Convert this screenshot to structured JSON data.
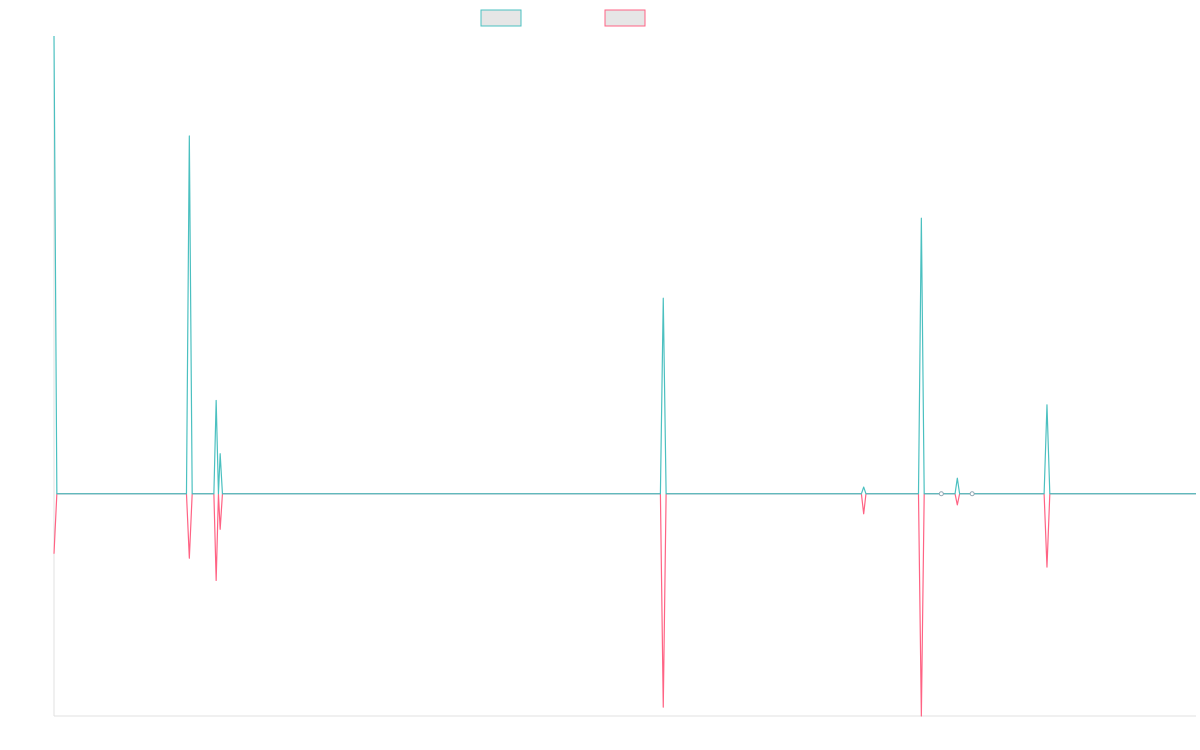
{
  "chart_data": {
    "type": "line",
    "title": "",
    "xlabel": "",
    "ylabel": "",
    "grid": false,
    "legend": "top-center",
    "x_range": [
      0,
      100
    ],
    "y_range": [
      -100,
      206
    ],
    "series": [
      {
        "name": "",
        "color": "#4bc0c0",
        "fill": "#e6e6e6",
        "points": [
          [
            0,
            206
          ],
          [
            0.25,
            0
          ],
          [
            11.6,
            0
          ],
          [
            11.85,
            161
          ],
          [
            12.1,
            0
          ],
          [
            14.0,
            0
          ],
          [
            14.2,
            42
          ],
          [
            14.4,
            0
          ],
          [
            14.55,
            18
          ],
          [
            14.75,
            0
          ],
          [
            53.1,
            0
          ],
          [
            53.35,
            88
          ],
          [
            53.6,
            0
          ],
          [
            70.7,
            0
          ],
          [
            70.9,
            3
          ],
          [
            71.1,
            0
          ],
          [
            75.7,
            0
          ],
          [
            75.95,
            124
          ],
          [
            76.2,
            0
          ],
          [
            77.7,
            0
          ],
          [
            78.9,
            0
          ],
          [
            79.1,
            7
          ],
          [
            79.3,
            0
          ],
          [
            80.4,
            0
          ],
          [
            86.7,
            0
          ],
          [
            86.95,
            40
          ],
          [
            87.2,
            0
          ],
          [
            100,
            0
          ]
        ]
      },
      {
        "name": "",
        "color": "#ff6384",
        "fill": "#e6e6e6",
        "points": [
          [
            0,
            -27
          ],
          [
            0.25,
            0
          ],
          [
            11.6,
            0
          ],
          [
            11.85,
            -29
          ],
          [
            12.1,
            0
          ],
          [
            14.0,
            0
          ],
          [
            14.2,
            -39
          ],
          [
            14.4,
            0
          ],
          [
            14.55,
            -16
          ],
          [
            14.75,
            0
          ],
          [
            53.1,
            0
          ],
          [
            53.35,
            -96
          ],
          [
            53.6,
            0
          ],
          [
            70.7,
            0
          ],
          [
            70.9,
            -9
          ],
          [
            71.1,
            0
          ],
          [
            75.7,
            0
          ],
          [
            75.95,
            -100
          ],
          [
            76.2,
            0
          ],
          [
            77.7,
            0
          ],
          [
            78.9,
            0
          ],
          [
            79.1,
            -5
          ],
          [
            79.3,
            0
          ],
          [
            80.4,
            0
          ],
          [
            86.7,
            0
          ],
          [
            86.95,
            -33
          ],
          [
            87.2,
            0
          ],
          [
            100,
            0
          ]
        ]
      }
    ],
    "point_markers_x": [
      77.7,
      80.4
    ]
  }
}
